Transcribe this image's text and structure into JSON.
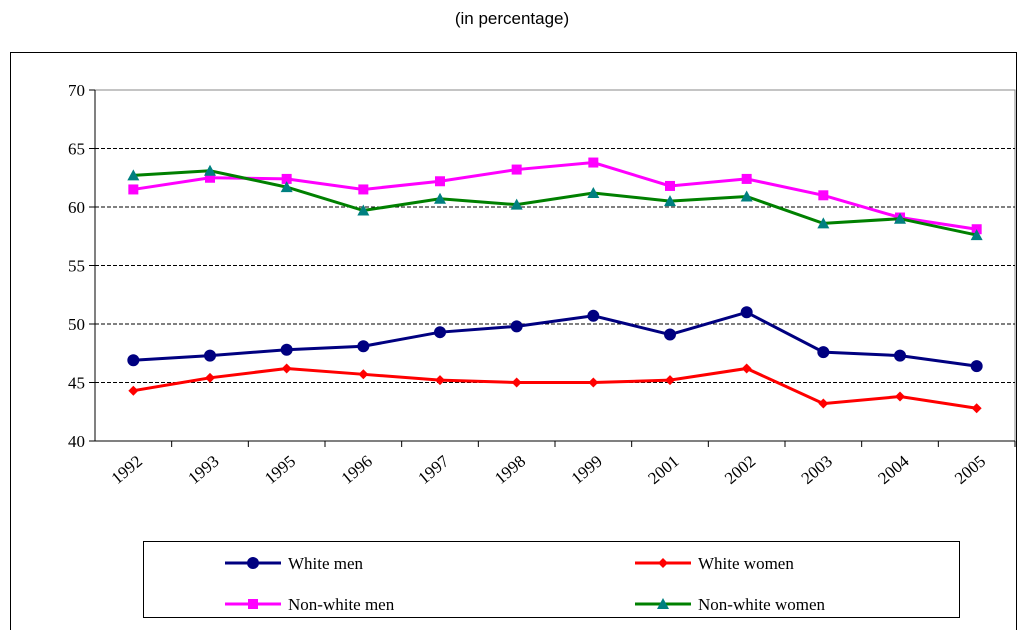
{
  "chart_data": {
    "type": "line",
    "title": "(in percentage)",
    "categories": [
      "1992",
      "1993",
      "1995",
      "1996",
      "1997",
      "1998",
      "1999",
      "2001",
      "2002",
      "2003",
      "2004",
      "2005"
    ],
    "series": [
      {
        "name": "White men",
        "color": "#000080",
        "marker": "circle",
        "values": [
          46.9,
          47.3,
          47.8,
          48.1,
          49.3,
          49.8,
          50.7,
          49.1,
          51.0,
          47.6,
          47.3,
          46.4
        ]
      },
      {
        "name": "White women",
        "color": "#ff0000",
        "marker": "diamond",
        "values": [
          44.3,
          45.4,
          46.2,
          45.7,
          45.2,
          45.0,
          45.0,
          45.2,
          46.2,
          43.2,
          43.8,
          42.8
        ]
      },
      {
        "name": "Non-white men",
        "color": "#ff00ff",
        "marker": "square",
        "values": [
          61.5,
          62.5,
          62.4,
          61.5,
          62.2,
          63.2,
          63.8,
          61.8,
          62.4,
          61.0,
          59.1,
          58.1
        ]
      },
      {
        "name": "Non-white women",
        "color": "#008000",
        "marker": "triangle",
        "values": [
          62.7,
          63.1,
          61.7,
          59.7,
          60.7,
          60.2,
          61.2,
          60.5,
          60.9,
          58.6,
          59.0,
          57.6
        ]
      }
    ],
    "ylim": [
      40,
      70
    ],
    "yticks": [
      40,
      45,
      50,
      55,
      60,
      65,
      70
    ],
    "grid": true
  }
}
